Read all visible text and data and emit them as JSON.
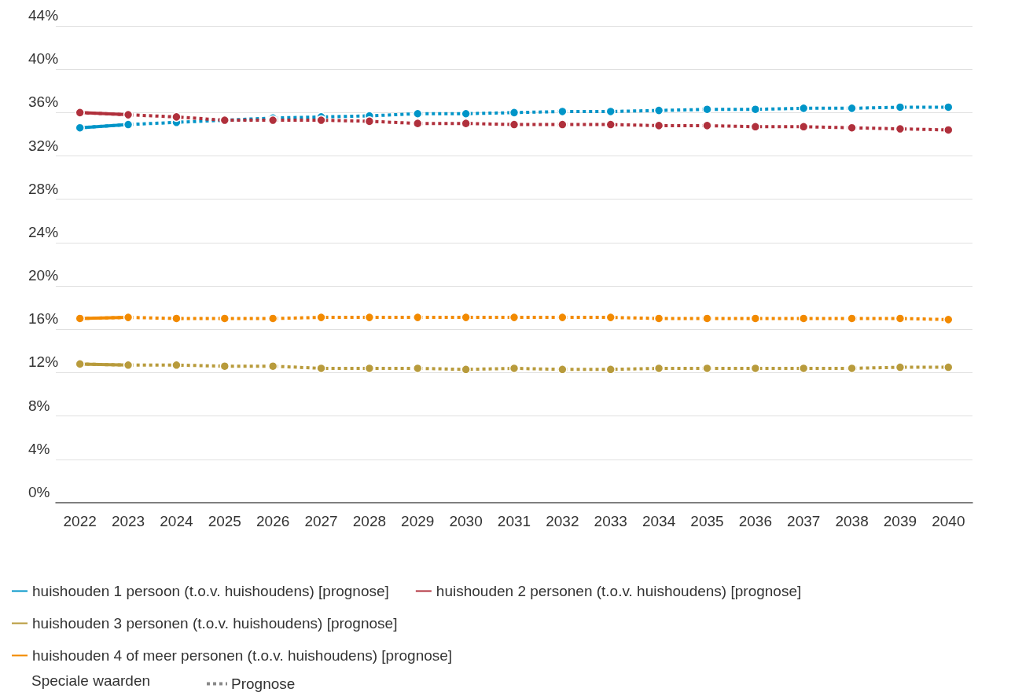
{
  "chart_data": {
    "type": "line",
    "categories": [
      "2022",
      "2023",
      "2024",
      "2025",
      "2026",
      "2027",
      "2028",
      "2029",
      "2030",
      "2031",
      "2032",
      "2033",
      "2034",
      "2035",
      "2036",
      "2037",
      "2038",
      "2039",
      "2040"
    ],
    "ylim": [
      0,
      44
    ],
    "yticks": [
      {
        "value": 0,
        "label": "0%"
      },
      {
        "value": 4,
        "label": "4%"
      },
      {
        "value": 8,
        "label": "8%"
      },
      {
        "value": 12,
        "label": "12%"
      },
      {
        "value": 16,
        "label": "16%"
      },
      {
        "value": 20,
        "label": "20%"
      },
      {
        "value": 24,
        "label": "24%"
      },
      {
        "value": 28,
        "label": "28%"
      },
      {
        "value": 32,
        "label": "32%"
      },
      {
        "value": 36,
        "label": "36%"
      },
      {
        "value": 40,
        "label": "40%"
      },
      {
        "value": 44,
        "label": "44%"
      }
    ],
    "grid": "y",
    "legend": "bottom",
    "legend_title": "Speciale waarden",
    "marker": "circle",
    "series": [
      {
        "name": "huishouden 1 persoon (t.o.v. huishoudens) [prognose]",
        "color": "#0095c8",
        "line_style": "dotted",
        "values": [
          34.6,
          34.9,
          35.1,
          35.3,
          35.5,
          35.6,
          35.7,
          35.9,
          35.9,
          36.0,
          36.1,
          36.1,
          36.2,
          36.3,
          36.3,
          36.4,
          36.4,
          36.5,
          36.5
        ]
      },
      {
        "name": "huishouden 2 personen (t.o.v. huishoudens) [prognose]",
        "color": "#b0303c",
        "line_style": "dotted",
        "values": [
          36.0,
          35.8,
          35.6,
          35.3,
          35.3,
          35.3,
          35.2,
          35.0,
          35.0,
          34.9,
          34.9,
          34.9,
          34.8,
          34.8,
          34.7,
          34.7,
          34.6,
          34.5,
          34.4
        ]
      },
      {
        "name": "huishouden 3 personen (t.o.v. huishoudens) [prognose]",
        "color": "#b89b3c",
        "line_style": "dotted",
        "values": [
          12.8,
          12.7,
          12.7,
          12.6,
          12.6,
          12.4,
          12.4,
          12.4,
          12.3,
          12.4,
          12.3,
          12.3,
          12.4,
          12.4,
          12.4,
          12.4,
          12.4,
          12.5,
          12.5
        ]
      },
      {
        "name": "huishouden 4 of meer personen (t.o.v. huishoudens) [prognose]",
        "color": "#f28a00",
        "line_style": "dotted",
        "values": [
          17.0,
          17.1,
          17.0,
          17.0,
          17.0,
          17.1,
          17.1,
          17.1,
          17.1,
          17.1,
          17.1,
          17.1,
          17.0,
          17.0,
          17.0,
          17.0,
          17.0,
          17.0,
          16.9
        ]
      },
      {
        "color": "#0095c8",
        "line_style": "solid",
        "marker": "none",
        "values": [
          34.6,
          34.9,
          null,
          null,
          null,
          null,
          null,
          null,
          null,
          null,
          null,
          null,
          null,
          null,
          null,
          null,
          null,
          null,
          null
        ]
      },
      {
        "color": "#b0303c",
        "line_style": "solid",
        "marker": "none",
        "values": [
          36.0,
          35.8,
          null,
          null,
          null,
          null,
          null,
          null,
          null,
          null,
          null,
          null,
          null,
          null,
          null,
          null,
          null,
          null,
          null
        ]
      },
      {
        "color": "#b89b3c",
        "line_style": "solid",
        "marker": "none",
        "values": [
          12.8,
          12.7,
          null,
          null,
          null,
          null,
          null,
          null,
          null,
          null,
          null,
          null,
          null,
          null,
          null,
          null,
          null,
          null,
          null
        ]
      },
      {
        "color": "#f28a00",
        "line_style": "solid",
        "marker": "none",
        "values": [
          17.0,
          17.1,
          null,
          null,
          null,
          null,
          null,
          null,
          null,
          null,
          null,
          null,
          null,
          null,
          null,
          null,
          null,
          null,
          null
        ]
      },
      {
        "name": "Prognose",
        "color": "#888888",
        "line_style": "dotted",
        "values": [
          null,
          null,
          null,
          null,
          null,
          null,
          null,
          null,
          null,
          null,
          null,
          null,
          null,
          null,
          null,
          null,
          null,
          null,
          null
        ]
      }
    ]
  }
}
